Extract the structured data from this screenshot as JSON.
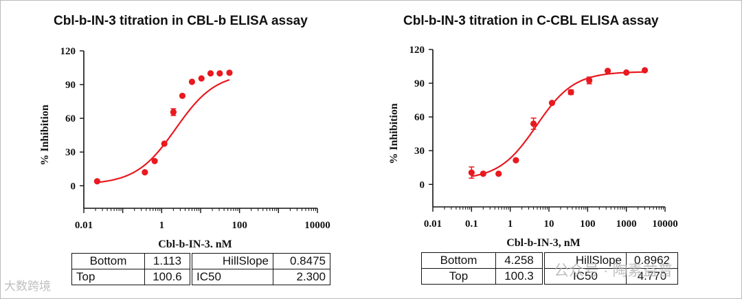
{
  "chart_data": [
    {
      "type": "scatter",
      "title": "Cbl-b-IN-3 titration in CBL-b ELISA assay",
      "xlabel": "Cbl-b-IN-3, nM",
      "ylabel": "% Inhibition",
      "xscale": "log",
      "xlim": [
        0.01,
        10000
      ],
      "ylim": [
        -20,
        120
      ],
      "x_ticks": [
        "0.01",
        "1",
        "100",
        "10000"
      ],
      "y_ticks": [
        "0",
        "30",
        "60",
        "90",
        "120"
      ],
      "series": [
        {
          "name": "data",
          "points": [
            {
              "x": 0.022,
              "y": 4.0
            },
            {
              "x": 0.37,
              "y": 12.0
            },
            {
              "x": 0.66,
              "y": 22.0
            },
            {
              "x": 1.17,
              "y": 37.5
            },
            {
              "x": 2.0,
              "y": 65.5,
              "err": 3.0
            },
            {
              "x": 3.4,
              "y": 80.0
            },
            {
              "x": 6.0,
              "y": 92.5
            },
            {
              "x": 10.5,
              "y": 95.5
            },
            {
              "x": 18.0,
              "y": 100.0
            },
            {
              "x": 31.0,
              "y": 100.0
            },
            {
              "x": 55.0,
              "y": 100.5
            }
          ]
        }
      ],
      "fit": {
        "bottom": 1.113,
        "top": 100.6,
        "ic50": 2.3,
        "hillslope": 0.8475
      },
      "fit_range": [
        0.022,
        55.0
      ],
      "params_table": [
        [
          "Bottom",
          "1.113",
          "HillSlope",
          "0.8475"
        ],
        [
          "Top",
          "100.6",
          "IC50",
          "2.300"
        ]
      ],
      "color": "#e8191f"
    },
    {
      "type": "scatter",
      "title": "Cbl-b-IN-3 titration in C-CBL ELISA assay",
      "xlabel": "Cbl-b-IN-3, nM",
      "ylabel": "% Inhibition",
      "xscale": "log",
      "xlim": [
        0.01,
        10000
      ],
      "ylim": [
        -20,
        120
      ],
      "x_ticks": [
        "0.01",
        "0.1",
        "1",
        "10",
        "100",
        "1000",
        "10000"
      ],
      "y_ticks": [
        "0",
        "30",
        "60",
        "90",
        "120"
      ],
      "series": [
        {
          "name": "data",
          "points": [
            {
              "x": 0.1,
              "y": 10.5,
              "err": 5.0
            },
            {
              "x": 0.2,
              "y": 9.5
            },
            {
              "x": 0.5,
              "y": 9.5
            },
            {
              "x": 1.4,
              "y": 21.5
            },
            {
              "x": 4.0,
              "y": 54.0,
              "err": 5.0
            },
            {
              "x": 12.0,
              "y": 72.5
            },
            {
              "x": 37.0,
              "y": 82.0,
              "err": 2.0
            },
            {
              "x": 110.0,
              "y": 92.5,
              "err": 3.0
            },
            {
              "x": 330.0,
              "y": 101.0
            },
            {
              "x": 1000.0,
              "y": 99.5
            },
            {
              "x": 3000.0,
              "y": 101.5
            }
          ]
        }
      ],
      "fit": {
        "bottom": 4.258,
        "top": 100.3,
        "ic50": 4.77,
        "hillslope": 0.8962
      },
      "fit_range": [
        0.1,
        3000.0
      ],
      "params_table": [
        [
          "Bottom",
          "4.258",
          "HillSlope",
          "0.8962"
        ],
        [
          "Top",
          "100.3",
          "IC50",
          "4.770"
        ]
      ],
      "color": "#e8191f"
    }
  ],
  "watermarks": {
    "left": "大数跨境",
    "right": "公众号 · 陶素益普"
  }
}
